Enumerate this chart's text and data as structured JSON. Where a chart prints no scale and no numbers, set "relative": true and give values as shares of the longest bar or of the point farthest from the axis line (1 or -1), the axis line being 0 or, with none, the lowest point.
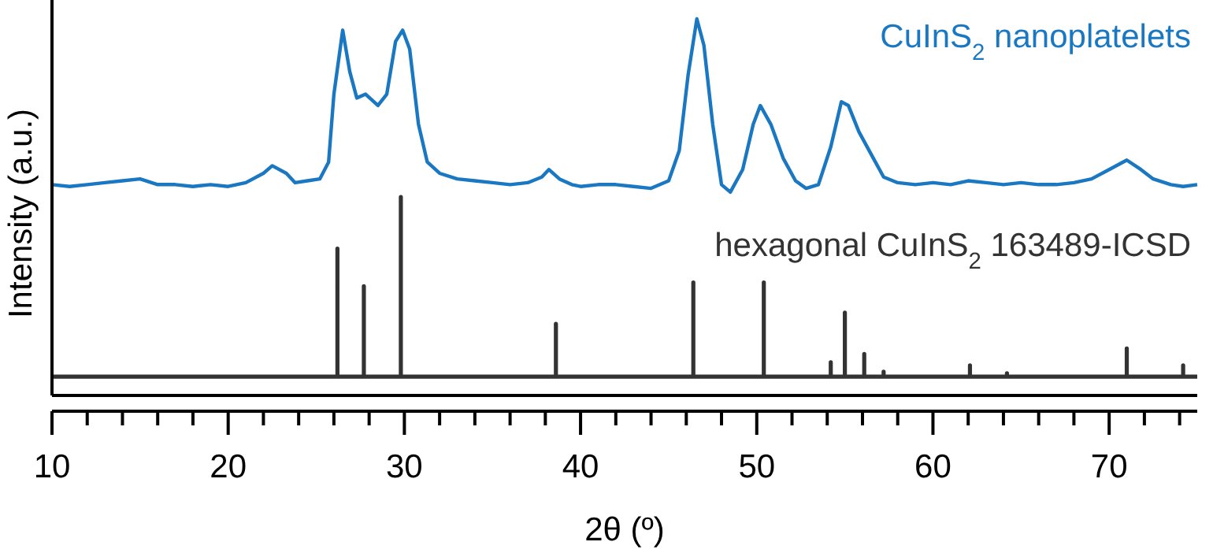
{
  "chart_data": {
    "type": "line",
    "relative": true,
    "xlabel": "2θ (º)",
    "ylabel": "Intensity (a.u.)",
    "xlim": [
      10,
      75
    ],
    "xticks": [
      10,
      {
        "value": 12,
        "label": null
      },
      {
        "value": 14,
        "label": null
      },
      {
        "value": 16,
        "label": null
      },
      {
        "value": 18,
        "label": null
      },
      20,
      {
        "value": 22,
        "label": null
      },
      {
        "value": 24,
        "label": null
      },
      {
        "value": 26,
        "label": null
      },
      {
        "value": 28,
        "label": null
      },
      30,
      {
        "value": 32,
        "label": null
      },
      {
        "value": 34,
        "label": null
      },
      {
        "value": 36,
        "label": null
      },
      {
        "value": 38,
        "label": null
      },
      40,
      {
        "value": 42,
        "label": null
      },
      {
        "value": 44,
        "label": null
      },
      {
        "value": 46,
        "label": null
      },
      {
        "value": 48,
        "label": null
      },
      50,
      {
        "value": 52,
        "label": null
      },
      {
        "value": 54,
        "label": null
      },
      {
        "value": 56,
        "label": null
      },
      {
        "value": 58,
        "label": null
      },
      60,
      {
        "value": 62,
        "label": null
      },
      {
        "value": 64,
        "label": null
      },
      {
        "value": 66,
        "label": null
      },
      {
        "value": 68,
        "label": null
      },
      70,
      {
        "value": 72,
        "label": null
      },
      {
        "value": 74,
        "label": null
      }
    ],
    "tick_labels": "x",
    "grid": false,
    "legend": false,
    "marker": "none",
    "line_style": "solid",
    "series": [
      {
        "name": "CuInS$_{2}$ nanoplatelets",
        "color": "#1a78c2",
        "x": [
          10,
          11,
          12,
          13,
          14,
          15,
          16,
          17,
          18,
          19,
          20,
          21,
          22,
          22.5,
          23.3,
          23.8,
          24.5,
          25.2,
          25.7,
          26.0,
          26.5,
          26.9,
          27.3,
          27.8,
          28.5,
          29.0,
          29.5,
          29.9,
          30.3,
          30.8,
          31.3,
          32,
          33,
          34,
          35,
          36,
          37,
          37.8,
          38.2,
          38.8,
          39.5,
          40,
          41,
          42,
          43,
          44,
          45,
          45.6,
          46.1,
          46.6,
          47.0,
          47.5,
          48,
          48.5,
          49.2,
          49.8,
          50.2,
          50.8,
          51.5,
          52.2,
          52.8,
          53.5,
          54.2,
          54.8,
          55.2,
          55.8,
          56.5,
          57.2,
          58,
          59,
          60,
          61,
          62,
          63,
          64,
          65,
          66,
          67,
          68,
          69,
          70,
          71,
          71.8,
          72.5,
          73.5,
          74.2,
          75
        ],
        "values": [
          0.56,
          0.555,
          0.56,
          0.565,
          0.57,
          0.575,
          0.56,
          0.56,
          0.555,
          0.56,
          0.555,
          0.565,
          0.59,
          0.61,
          0.59,
          0.565,
          0.57,
          0.575,
          0.62,
          0.8,
          0.97,
          0.86,
          0.79,
          0.8,
          0.77,
          0.8,
          0.94,
          0.97,
          0.92,
          0.72,
          0.62,
          0.59,
          0.575,
          0.57,
          0.565,
          0.56,
          0.565,
          0.58,
          0.6,
          0.575,
          0.56,
          0.555,
          0.56,
          0.56,
          0.555,
          0.55,
          0.57,
          0.65,
          0.85,
          1.0,
          0.93,
          0.72,
          0.56,
          0.54,
          0.6,
          0.72,
          0.77,
          0.72,
          0.63,
          0.57,
          0.55,
          0.56,
          0.66,
          0.78,
          0.77,
          0.7,
          0.64,
          0.58,
          0.565,
          0.56,
          0.565,
          0.56,
          0.57,
          0.565,
          0.56,
          0.565,
          0.56,
          0.56,
          0.565,
          0.575,
          0.6,
          0.625,
          0.6,
          0.575,
          0.56,
          0.555,
          0.56
        ]
      },
      {
        "name": "hexagonal CuInS$_{2}$ 163489-ICSD",
        "color": "#333333",
        "x": [
          10,
          26.2,
          26.2,
          26.2,
          27.7,
          27.7,
          27.7,
          29.8,
          29.8,
          29.8,
          38.6,
          38.6,
          38.6,
          46.4,
          46.4,
          46.4,
          50.4,
          50.4,
          50.4,
          54.2,
          54.2,
          54.2,
          55.0,
          55.0,
          55.0,
          56.1,
          56.1,
          56.1,
          57.2,
          57.2,
          57.2,
          62.1,
          62.1,
          62.1,
          64.2,
          64.2,
          64.2,
          71.0,
          71.0,
          71.0,
          74.2,
          74.2,
          74.2,
          75
        ],
        "values": [
          0.05,
          0.05,
          0.39,
          0.05,
          0.05,
          0.29,
          0.05,
          0.05,
          0.527,
          0.05,
          0.05,
          0.19,
          0.05,
          0.05,
          0.3,
          0.05,
          0.05,
          0.3,
          0.05,
          0.05,
          0.088,
          0.05,
          0.05,
          0.22,
          0.05,
          0.05,
          0.11,
          0.05,
          0.05,
          0.063,
          0.05,
          0.05,
          0.08,
          0.05,
          0.05,
          0.059,
          0.05,
          0.05,
          0.125,
          0.05,
          0.05,
          0.08,
          0.05,
          0.05
        ]
      }
    ]
  }
}
